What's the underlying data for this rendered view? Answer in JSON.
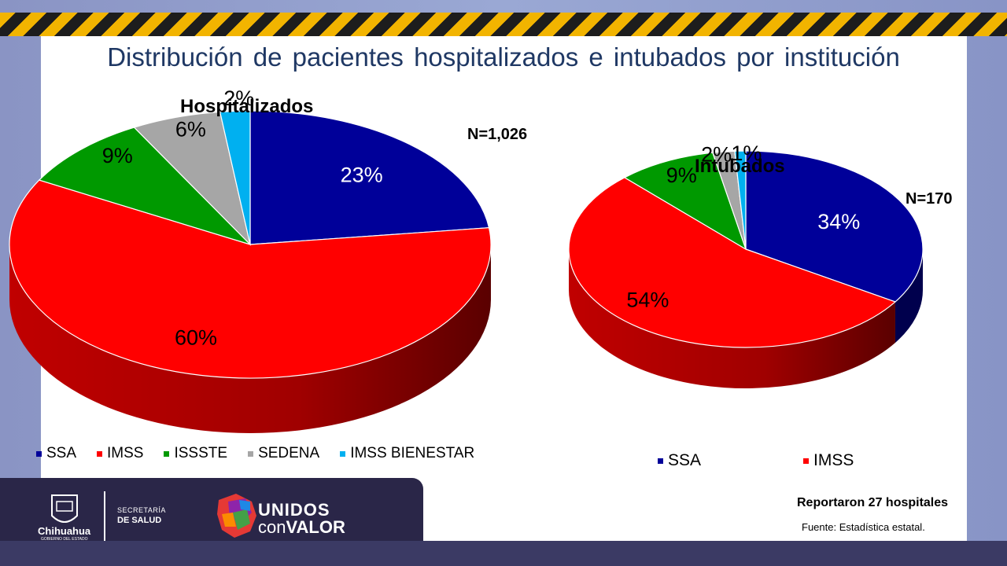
{
  "slide_title": "Distribución de pacientes hospitalizados e intubados por institución",
  "colors": {
    "SSA": "#000099",
    "IMSS": "#ff0000",
    "ISSSTE": "#009900",
    "SEDENA": "#a6a6a6",
    "IMSS BIENESTAR": "#00b0f0"
  },
  "chart_data": [
    {
      "type": "pie",
      "title": "Hospitalizados",
      "n_label": "N=1,026",
      "categories": [
        "SSA",
        "IMSS",
        "ISSSTE",
        "SEDENA",
        "IMSS BIENESTAR"
      ],
      "values": [
        23,
        60,
        9,
        6,
        2
      ],
      "data_labels": [
        "23%",
        "60%",
        "9%",
        "6%",
        "2%"
      ],
      "legend": [
        "SSA",
        "IMSS",
        "ISSSTE",
        "SEDENA",
        "IMSS BIENESTAR"
      ],
      "legend_position": "bottom",
      "style": "3d"
    },
    {
      "type": "pie",
      "title": "Intubados",
      "n_label": "N=170",
      "categories": [
        "SSA",
        "IMSS",
        "ISSSTE",
        "SEDENA",
        "IMSS BIENESTAR"
      ],
      "values": [
        34,
        54,
        9,
        2,
        1
      ],
      "data_labels": [
        "34%",
        "54%",
        "9%",
        "2%",
        "1%"
      ],
      "legend": [
        "SSA",
        "IMSS"
      ],
      "legend_position": "bottom",
      "style": "3d"
    }
  ],
  "notes": {
    "hospitals": "Reportaron 27 hospitales",
    "source": "Fuente: Estadística estatal."
  },
  "logos": {
    "chihuahua": "Chihuahua",
    "chihuahua_sub": "GOBIERNO DEL ESTADO",
    "secretaria_line1": "SECRETARÍA",
    "secretaria_line2": "DE SALUD",
    "unidos": "UNIDOS",
    "con": "con",
    "valor": "VALOR"
  }
}
